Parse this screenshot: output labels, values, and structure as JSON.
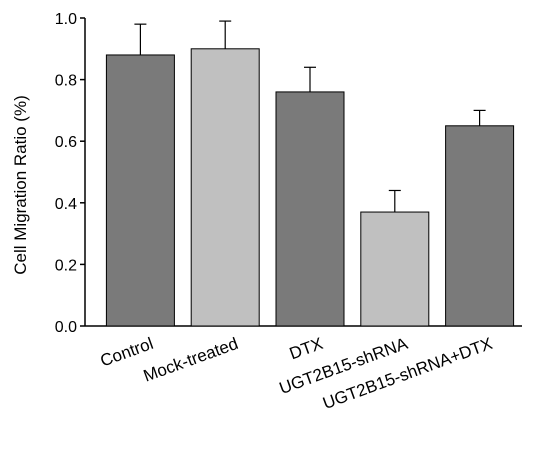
{
  "chart_data": {
    "type": "bar",
    "title": "",
    "xlabel": "",
    "ylabel": "Cell Migration Ratio (%)",
    "ylim": [
      0,
      1.0
    ],
    "yticks": [
      "0.0",
      "0.2",
      "0.4",
      "0.6",
      "0.8",
      "1.0"
    ],
    "categories": [
      "Control",
      "Mock-treated",
      "DTX",
      "UGT2B15-shRNA",
      "UGT2B15-shRNA+DTX"
    ],
    "values": [
      0.88,
      0.9,
      0.76,
      0.37,
      0.65
    ],
    "errors": [
      0.1,
      0.09,
      0.08,
      0.07,
      0.05
    ],
    "bar_colors": [
      "#7a7a7a",
      "#c0c0c0",
      "#7a7a7a",
      "#c0c0c0",
      "#7a7a7a"
    ],
    "grid": false,
    "legend": "none"
  }
}
